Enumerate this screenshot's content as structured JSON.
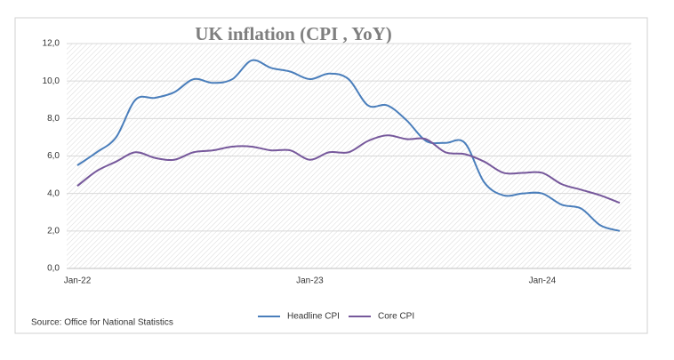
{
  "chart_data": {
    "type": "line",
    "title": "UK inflation (CPI , YoY)",
    "source": "Source: Office for National Statistics",
    "categories": [
      "Jan-22",
      null,
      null,
      null,
      null,
      null,
      null,
      null,
      null,
      null,
      null,
      null,
      "Jan-23",
      null,
      null,
      null,
      null,
      null,
      null,
      null,
      null,
      null,
      null,
      null,
      "Jan-24",
      null,
      null,
      null,
      null
    ],
    "series": [
      {
        "name": "Headline CPI",
        "color": "#4a7ebb",
        "values": [
          5.5,
          6.2,
          7.0,
          9.0,
          9.1,
          9.4,
          10.1,
          9.9,
          10.1,
          11.1,
          10.7,
          10.5,
          10.1,
          10.4,
          10.1,
          8.7,
          8.7,
          7.9,
          6.8,
          6.7,
          6.7,
          4.6,
          3.9,
          4.0,
          4.0,
          3.4,
          3.2,
          2.3,
          2.0
        ]
      },
      {
        "name": "Core CPI",
        "color": "#76589b",
        "values": [
          4.4,
          5.2,
          5.7,
          6.2,
          5.9,
          5.8,
          6.2,
          6.3,
          6.5,
          6.5,
          6.3,
          6.3,
          5.8,
          6.2,
          6.2,
          6.8,
          7.1,
          6.9,
          6.9,
          6.2,
          6.1,
          5.7,
          5.1,
          5.1,
          5.1,
          4.5,
          4.2,
          3.9,
          3.5
        ]
      }
    ],
    "ylim": [
      0,
      12
    ],
    "yticks": [
      {
        "value": 0,
        "label": "0,0"
      },
      {
        "value": 2,
        "label": "2,0"
      },
      {
        "value": 4,
        "label": "4,0"
      },
      {
        "value": 6,
        "label": "6,0"
      },
      {
        "value": 8,
        "label": "8,0"
      },
      {
        "value": 10,
        "label": "10,0"
      },
      {
        "value": 12,
        "label": "12,0"
      }
    ],
    "grid": true,
    "legend": "bottom"
  }
}
